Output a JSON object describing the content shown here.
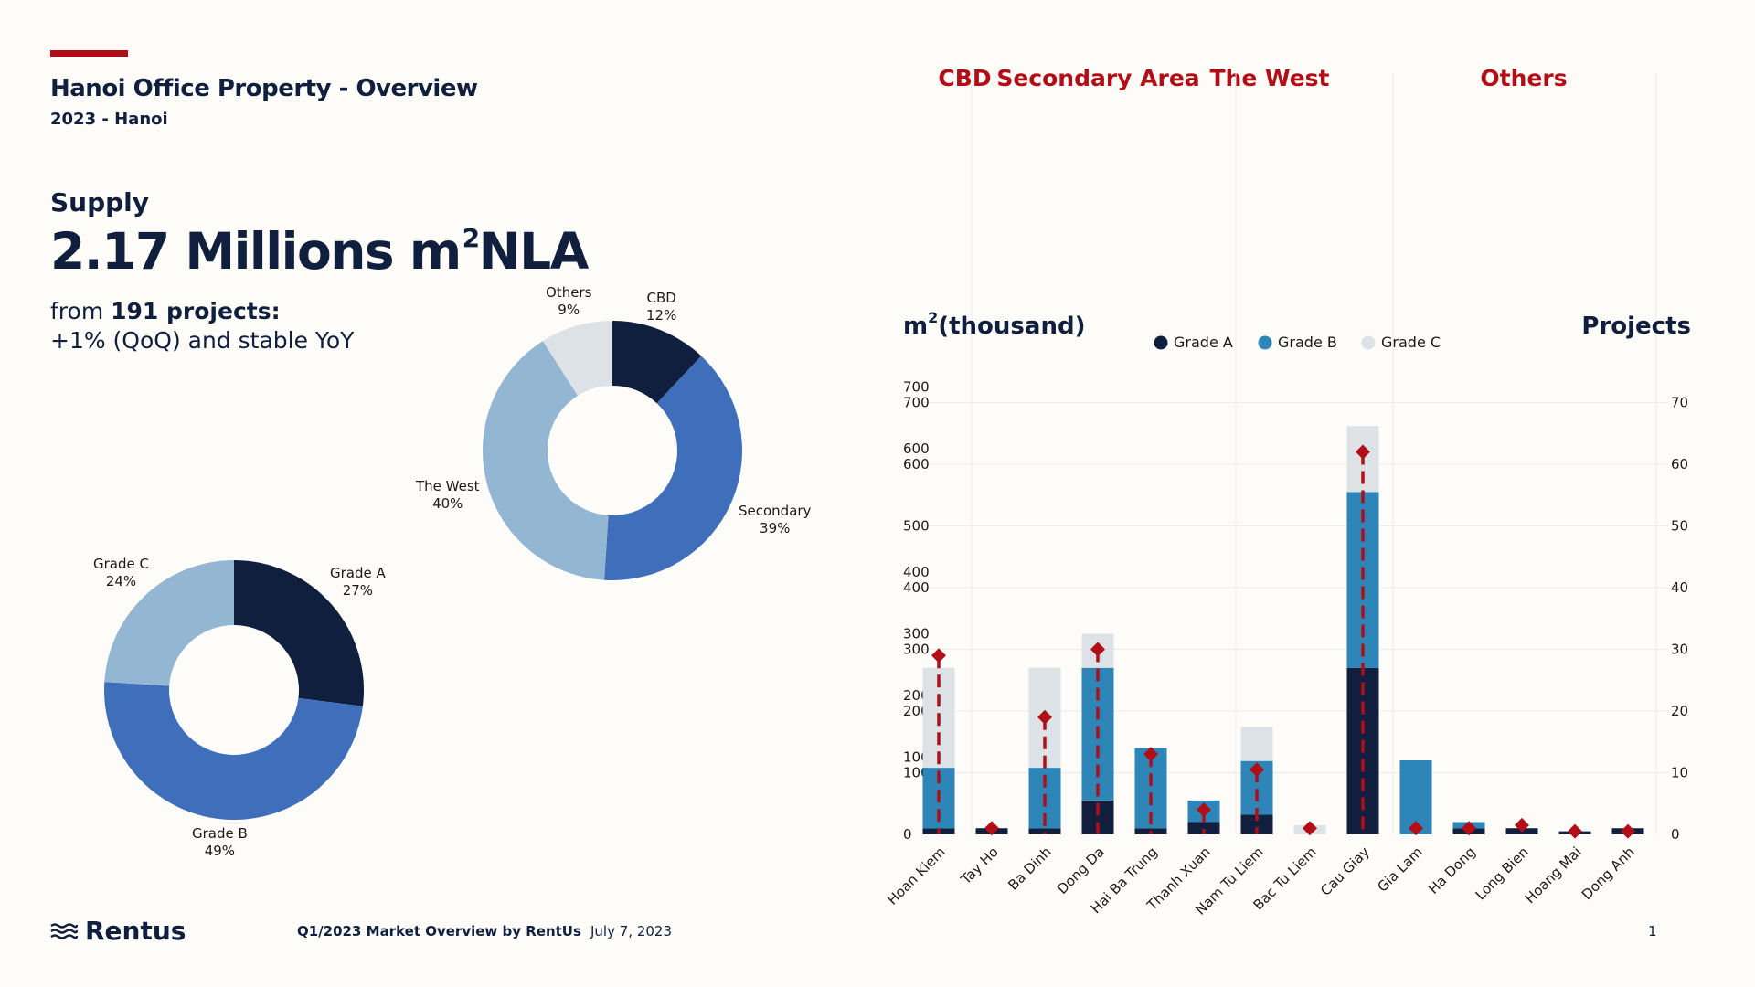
{
  "header": {
    "title": "Hanoi Office Property - Overview",
    "subtitle": "2023 - Hanoi"
  },
  "supply": {
    "label": "Supply",
    "value": "2.17 Millions m",
    "value_sup": "2",
    "value_unit": "NLA",
    "from_prefix": "from ",
    "projects": "191 projects:",
    "change": "+1% (QoQ) and stable YoY"
  },
  "donuts": [
    {
      "name": "location",
      "slices": [
        {
          "label": "CBD",
          "pct_label": "12%",
          "value": 12,
          "color": "#0f1f3d"
        },
        {
          "label": "Secondary",
          "pct_label": "39%",
          "value": 39,
          "color": "#3f6fba"
        },
        {
          "label": "The West",
          "pct_label": "40%",
          "value": 40,
          "color": "#93b6d3"
        },
        {
          "label": "Others",
          "pct_label": "9%",
          "value": 9,
          "color": "#dce2e6"
        }
      ]
    },
    {
      "name": "grade",
      "slices": [
        {
          "label": "Grade A",
          "pct_label": "27%",
          "value": 27,
          "color": "#0f1f3d"
        },
        {
          "label": "Grade B",
          "pct_label": "49%",
          "value": 49,
          "color": "#3f6fba"
        },
        {
          "label": "Grade C",
          "pct_label": "24%",
          "value": 24,
          "color": "#93b6d3"
        }
      ]
    }
  ],
  "chart_data": {
    "type": "bar",
    "stacked": true,
    "regions": [
      {
        "label": "CBD",
        "from": 0,
        "to": 0
      },
      {
        "label": "Secondary Area",
        "from": 1,
        "to": 4
      },
      {
        "label": "The West",
        "from": 5,
        "to": 7
      },
      {
        "label": "Others",
        "from": 8,
        "to": 13
      }
    ],
    "categories": [
      "Hoan Kiem",
      "Tay Ho",
      "Ba Dinh",
      "Dong Da",
      "Hai Ba Trung",
      "Thanh Xuan",
      "Nam Tu Liem",
      "Bac Tu Liem",
      "Cau Giay",
      "Gia Lam",
      "Ha Dong",
      "Long Bien",
      "Hoang Mai",
      "Dong Anh"
    ],
    "series": [
      {
        "name": "Grade A",
        "color": "#0f1f3d",
        "values": [
          10,
          10,
          10,
          55,
          10,
          20,
          32,
          0,
          270,
          0,
          10,
          10,
          5,
          10
        ]
      },
      {
        "name": "Grade B",
        "color": "#2e86b8",
        "values": [
          98,
          0,
          98,
          215,
          130,
          35,
          87,
          0,
          285,
          120,
          10,
          0,
          0,
          0
        ]
      },
      {
        "name": "Grade C",
        "color": "#dce2e6",
        "values": [
          162,
          0,
          162,
          55,
          0,
          0,
          55,
          15,
          107,
          0,
          0,
          0,
          0,
          0
        ]
      }
    ],
    "projects": {
      "name": "Projects",
      "color": "#b10f17",
      "values": [
        29,
        1,
        19,
        30,
        13,
        4,
        10.5,
        1,
        62,
        1,
        1,
        1.5,
        0.5,
        0.5
      ]
    },
    "ylabel": "m",
    "ylabel_sup": "2",
    "ylabel_unit": "(thousand)",
    "y2label": "Projects",
    "ylim": [
      0,
      700
    ],
    "y2lim": [
      0,
      70
    ],
    "yticks": [
      0,
      100,
      200,
      300,
      400,
      500,
      600,
      700
    ],
    "yticks_extra": [
      100,
      200,
      300,
      400,
      600,
      700
    ],
    "y2ticks": [
      0,
      10,
      20,
      30,
      40,
      50,
      60,
      70
    ],
    "legend": [
      "Grade A",
      "Grade B",
      "Grade C"
    ],
    "legend_position": "top"
  },
  "footer": {
    "logo": "Rentus",
    "source": "Q1/2023 Market Overview by RentUs",
    "date": "July 7, 2023",
    "page": "1"
  }
}
